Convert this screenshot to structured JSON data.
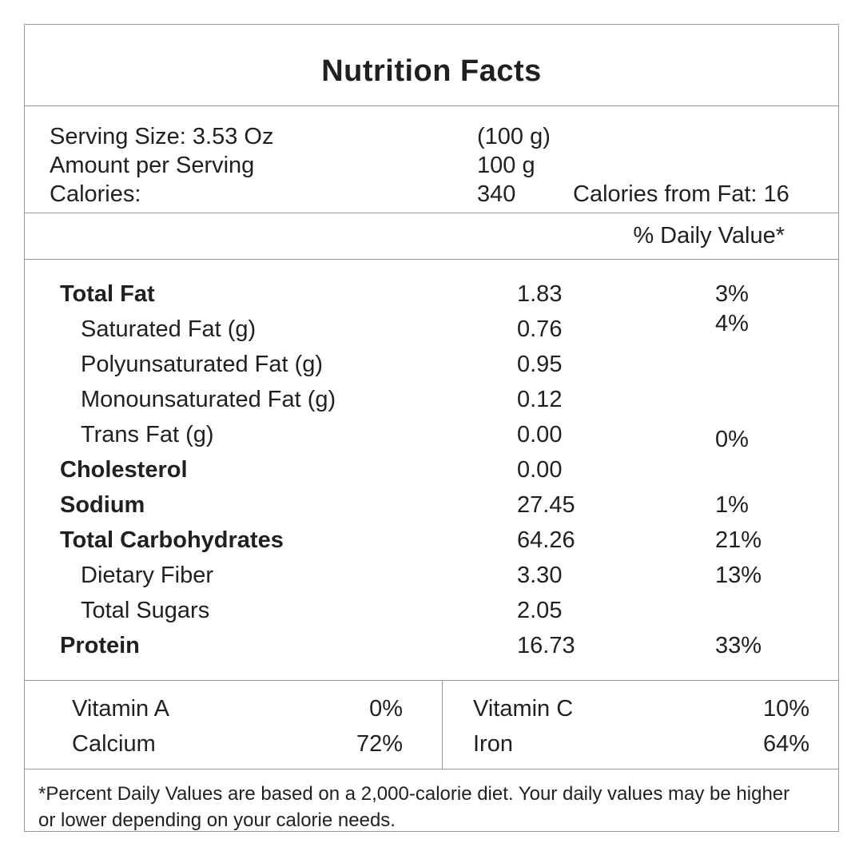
{
  "title": "Nutrition Facts",
  "serving": {
    "rows": [
      {
        "label": "Serving Size: 3.53 Oz",
        "value": "(100 g)",
        "note": ""
      },
      {
        "label": "Amount per Serving",
        "value": "100 g",
        "note": ""
      },
      {
        "label": "Calories:",
        "value": "340",
        "note": "Calories from Fat: 16"
      }
    ]
  },
  "daily_value_header": "% Daily Value*",
  "nutrients": [
    {
      "label": "Total Fat",
      "amount": "1.83",
      "dv": "3%"
    },
    {
      "label": "Saturated Fat (g)",
      "amount": "0.76",
      "dv": "4%"
    },
    {
      "label": "Polyunsaturated Fat (g)",
      "amount": "0.95",
      "dv": ""
    },
    {
      "label": "Monounsaturated Fat (g)",
      "amount": "0.12",
      "dv": ""
    },
    {
      "label": "Trans Fat (g)",
      "amount": "0.00",
      "dv": "0%"
    },
    {
      "label": "Cholesterol",
      "amount": "0.00",
      "dv": ""
    },
    {
      "label": "Sodium",
      "amount": "27.45",
      "dv": "1%"
    },
    {
      "label": "Total Carbohydrates",
      "amount": "64.26",
      "dv": "21%"
    },
    {
      "label": "Dietary Fiber",
      "amount": "3.30",
      "dv": "13%"
    },
    {
      "label": "Total Sugars",
      "amount": "2.05",
      "dv": ""
    },
    {
      "label": "Protein",
      "amount": "16.73",
      "dv": "33%"
    }
  ],
  "micronutrients": {
    "left": [
      {
        "label": "Vitamin A",
        "value": "0%"
      },
      {
        "label": "Calcium",
        "value": "72%"
      }
    ],
    "right": [
      {
        "label": "Vitamin C",
        "value": "10%"
      },
      {
        "label": "Iron",
        "value": "64%"
      }
    ]
  },
  "footnote": {
    "lines": [
      "*Percent Daily Values are based on a 2,000-calorie diet. Your daily values may be higher",
      "or lower depending on your calorie needs."
    ]
  },
  "colors": {
    "text": "#231f20",
    "border": "#999999",
    "background": "#ffffff"
  }
}
